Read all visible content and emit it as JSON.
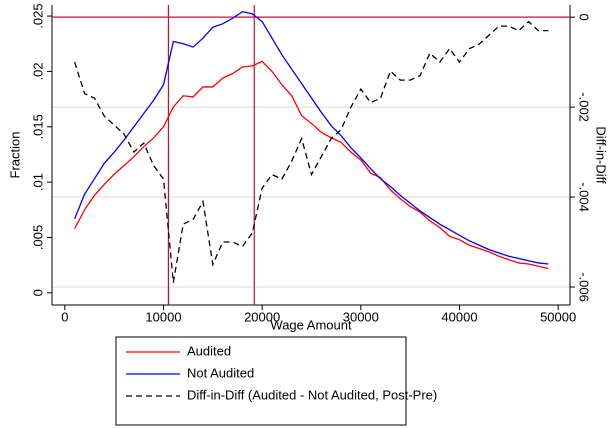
{
  "chart_data": {
    "type": "line",
    "xlabel": "Wage Amount",
    "ylabel": "Fraction",
    "y2label": "Diff-in-Diff",
    "x": [
      1000,
      2000,
      3000,
      4000,
      5000,
      6000,
      7000,
      8000,
      9000,
      10000,
      11000,
      12000,
      13000,
      14000,
      15000,
      16000,
      17000,
      18000,
      19000,
      20000,
      21000,
      22000,
      23000,
      24000,
      25000,
      26000,
      27000,
      28000,
      29000,
      30000,
      31000,
      32000,
      33000,
      34000,
      35000,
      36000,
      37000,
      38000,
      39000,
      40000,
      41000,
      42000,
      43000,
      44000,
      45000,
      46000,
      47000,
      48000,
      49000
    ],
    "series": [
      {
        "name": "Audited",
        "color": "#ff0000",
        "dash": false,
        "values": [
          0.0058,
          0.0075,
          0.0088,
          0.0098,
          0.0107,
          0.0115,
          0.0123,
          0.0132,
          0.014,
          0.015,
          0.0168,
          0.0178,
          0.0177,
          0.0186,
          0.0186,
          0.0194,
          0.0198,
          0.0204,
          0.0205,
          0.0209,
          0.02,
          0.0188,
          0.0178,
          0.016,
          0.0153,
          0.0145,
          0.014,
          0.0136,
          0.0127,
          0.012,
          0.0108,
          0.0104,
          0.0093,
          0.0085,
          0.0078,
          0.0073,
          0.0065,
          0.0059,
          0.0051,
          0.0048,
          0.0043,
          0.004,
          0.0037,
          0.0033,
          0.003,
          0.0027,
          0.0026,
          0.0024,
          0.0022
        ]
      },
      {
        "name": "Not Audited",
        "color": "#0000ff",
        "dash": false,
        "values": [
          0.0067,
          0.0089,
          0.0103,
          0.0117,
          0.0127,
          0.0138,
          0.015,
          0.0162,
          0.0174,
          0.0188,
          0.0227,
          0.0225,
          0.0222,
          0.023,
          0.024,
          0.0243,
          0.0248,
          0.0254,
          0.0252,
          0.0245,
          0.023,
          0.0215,
          0.0202,
          0.0189,
          0.0176,
          0.0163,
          0.0151,
          0.0142,
          0.0131,
          0.0122,
          0.0112,
          0.0103,
          0.0096,
          0.0088,
          0.0081,
          0.0074,
          0.0068,
          0.0062,
          0.0057,
          0.0052,
          0.0047,
          0.0043,
          0.0039,
          0.0036,
          0.0033,
          0.0031,
          0.0029,
          0.0027,
          0.0026
        ]
      },
      {
        "name": "Diff-in-Diff (Audited - Not Audited, Post-Pre)",
        "color": "#000000",
        "dash": true,
        "axis": "y2",
        "values": [
          -0.001,
          -0.0017,
          -0.0018,
          -0.0022,
          -0.0024,
          -0.0026,
          -0.003,
          -0.0028,
          -0.0033,
          -0.0036,
          -0.0059,
          -0.0046,
          -0.0045,
          -0.0041,
          -0.0055,
          -0.005,
          -0.005,
          -0.0051,
          -0.0048,
          -0.0038,
          -0.0035,
          -0.0036,
          -0.0032,
          -0.0027,
          -0.0035,
          -0.0031,
          -0.0027,
          -0.0025,
          -0.002,
          -0.0016,
          -0.0019,
          -0.0018,
          -0.0012,
          -0.0014,
          -0.0014,
          -0.0013,
          -0.0008,
          -0.001,
          -0.0007,
          -0.001,
          -0.0007,
          -0.0006,
          -0.0004,
          -0.0002,
          -0.0002,
          -0.0003,
          -0.0001,
          -0.0003,
          -0.0003
        ]
      }
    ],
    "xlim": [
      -1300,
      51200
    ],
    "xticks": [
      0,
      10000,
      20000,
      30000,
      40000,
      50000
    ],
    "ylim": [
      -0.0011,
      0.026
    ],
    "yticks": [
      0,
      {
        "value": 0.005,
        "label": ".005"
      },
      {
        "value": 0.01,
        "label": ".01"
      },
      {
        "value": 0.015,
        "label": ".015"
      },
      {
        "value": 0.02,
        "label": ".02"
      },
      {
        "value": 0.025,
        "label": ".025"
      }
    ],
    "y2lim": [
      -0.0064,
      0.00027
    ],
    "y2ticks": [
      0,
      {
        "value": -0.002,
        "label": "-.002"
      },
      {
        "value": -0.004,
        "label": "-.004"
      },
      {
        "value": -0.006,
        "label": "-.006"
      }
    ],
    "y2grid": true,
    "vlines": [
      10500,
      19200
    ],
    "y2hlines": [
      0
    ],
    "reference_color": "#c8102e",
    "legend": "bottom"
  }
}
